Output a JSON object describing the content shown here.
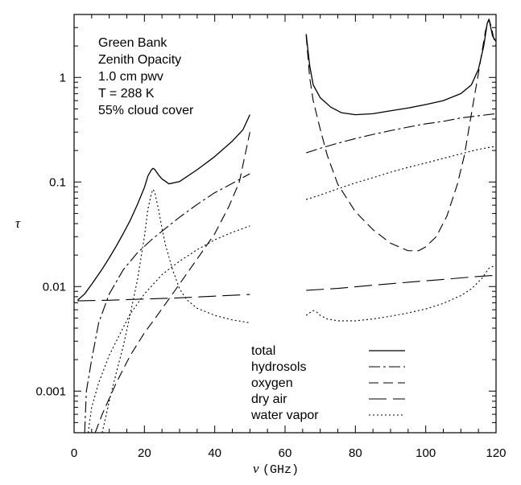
{
  "chart_data": {
    "type": "line",
    "annotation": [
      "Green Bank",
      "Zenith Opacity",
      "1.0 cm pwv",
      "T = 288 K",
      "55% cloud cover"
    ],
    "ylabel": "τ",
    "xlabel_symbol": "ν",
    "xlabel_unit": "(GHz)",
    "xlim": [
      0,
      120
    ],
    "ylim": [
      0.0004,
      4
    ],
    "yscale": "log",
    "x_ticks": [
      0,
      20,
      40,
      60,
      80,
      100,
      120
    ],
    "x_tick_labels": [
      "0",
      "20",
      "40",
      "60",
      "80",
      "100",
      "120"
    ],
    "y_ticks": [
      0.001,
      0.01,
      0.1,
      1
    ],
    "y_tick_labels": [
      "0.001",
      "0.01",
      "0.1",
      "1"
    ],
    "legend_position": "bottom-right",
    "series": [
      {
        "name": "total",
        "dash": "none",
        "segments": [
          [
            [
              1,
              0.0074
            ],
            [
              3,
              0.0085
            ],
            [
              5,
              0.0105
            ],
            [
              8,
              0.0147
            ],
            [
              10,
              0.0188
            ],
            [
              12,
              0.0244
            ],
            [
              14,
              0.0322
            ],
            [
              16,
              0.0432
            ],
            [
              18,
              0.0608
            ],
            [
              20,
              0.0885
            ],
            [
              21,
              0.114
            ],
            [
              22,
              0.131
            ],
            [
              22.5,
              0.135
            ],
            [
              23,
              0.131
            ],
            [
              24,
              0.117
            ],
            [
              25,
              0.107
            ],
            [
              27,
              0.096
            ],
            [
              30,
              0.101
            ],
            [
              35,
              0.131
            ],
            [
              40,
              0.175
            ],
            [
              45,
              0.246
            ],
            [
              48,
              0.315
            ],
            [
              50,
              0.44
            ]
          ],
          [
            [
              66,
              2.6
            ],
            [
              67,
              1.3
            ],
            [
              68,
              0.85
            ],
            [
              70,
              0.64
            ],
            [
              73,
              0.52
            ],
            [
              76,
              0.46
            ],
            [
              80,
              0.44
            ],
            [
              85,
              0.45
            ],
            [
              90,
              0.48
            ],
            [
              95,
              0.51
            ],
            [
              100,
              0.55
            ],
            [
              105,
              0.6
            ],
            [
              110,
              0.7
            ],
            [
              113,
              0.85
            ],
            [
              115,
              1.2
            ],
            [
              116.5,
              2.0
            ],
            [
              117.5,
              3.3
            ],
            [
              118,
              3.6
            ],
            [
              118.5,
              3.0
            ],
            [
              119,
              2.5
            ],
            [
              120,
              2.2
            ]
          ]
        ]
      },
      {
        "name": "hydrosols",
        "dash": "14 4 3 4",
        "segments": [
          [
            [
              3,
              0.0004
            ],
            [
              3.5,
              0.001
            ],
            [
              5,
              0.002
            ],
            [
              7,
              0.0045
            ],
            [
              10,
              0.0085
            ],
            [
              14,
              0.0145
            ],
            [
              18,
              0.021
            ],
            [
              22,
              0.028
            ],
            [
              26,
              0.036
            ],
            [
              30,
              0.046
            ],
            [
              35,
              0.061
            ],
            [
              40,
              0.079
            ],
            [
              45,
              0.097
            ],
            [
              50,
              0.12
            ]
          ],
          [
            [
              66,
              0.19
            ],
            [
              70,
              0.21
            ],
            [
              75,
              0.235
            ],
            [
              80,
              0.26
            ],
            [
              85,
              0.285
            ],
            [
              90,
              0.31
            ],
            [
              95,
              0.335
            ],
            [
              100,
              0.36
            ],
            [
              105,
              0.38
            ],
            [
              110,
              0.41
            ],
            [
              115,
              0.43
            ],
            [
              120,
              0.45
            ]
          ]
        ]
      },
      {
        "name": "oxygen",
        "dash": "12 6",
        "segments": [
          [
            [
              6,
              0.0004
            ],
            [
              8,
              0.0006
            ],
            [
              12,
              0.0012
            ],
            [
              16,
              0.0022
            ],
            [
              20,
              0.0036
            ],
            [
              24,
              0.0055
            ],
            [
              28,
              0.0085
            ],
            [
              32,
              0.0132
            ],
            [
              36,
              0.0205
            ],
            [
              40,
              0.032
            ],
            [
              44,
              0.058
            ],
            [
              47,
              0.1
            ],
            [
              50,
              0.3
            ]
          ],
          [
            [
              66,
              2.5
            ],
            [
              67,
              1.0
            ],
            [
              68,
              0.6
            ],
            [
              70,
              0.32
            ],
            [
              72,
              0.18
            ],
            [
              75,
              0.095
            ],
            [
              80,
              0.052
            ],
            [
              85,
              0.035
            ],
            [
              90,
              0.026
            ],
            [
              95,
              0.022
            ],
            [
              98,
              0.022
            ],
            [
              100,
              0.024
            ],
            [
              103,
              0.03
            ],
            [
              106,
              0.047
            ],
            [
              109,
              0.095
            ],
            [
              111,
              0.18
            ],
            [
              113,
              0.45
            ],
            [
              115,
              1.1
            ],
            [
              117,
              2.8
            ],
            [
              118,
              3.6
            ],
            [
              118.7,
              3.0
            ],
            [
              119.3,
              2.4
            ],
            [
              120,
              2.0
            ]
          ]
        ]
      },
      {
        "name": "dry air",
        "dash": "22 8",
        "segments": [
          [
            [
              1,
              0.0073
            ],
            [
              10,
              0.0074
            ],
            [
              20,
              0.0076
            ],
            [
              30,
              0.0078
            ],
            [
              40,
              0.0081
            ],
            [
              50,
              0.0084
            ]
          ],
          [
            [
              66,
              0.0092
            ],
            [
              75,
              0.0096
            ],
            [
              85,
              0.0103
            ],
            [
              95,
              0.011
            ],
            [
              105,
              0.0117
            ],
            [
              115,
              0.0125
            ],
            [
              120,
              0.0128
            ]
          ]
        ]
      },
      {
        "name": "water vapor",
        "dash": "2 3",
        "segments": [
          [
            [
              8,
              0.0004
            ],
            [
              10,
              0.0008
            ],
            [
              12,
              0.0015
            ],
            [
              14,
              0.0027
            ],
            [
              16,
              0.0055
            ],
            [
              18,
              0.0115
            ],
            [
              20,
              0.03
            ],
            [
              21,
              0.055
            ],
            [
              22,
              0.078
            ],
            [
              22.5,
              0.085
            ],
            [
              23,
              0.078
            ],
            [
              24,
              0.055
            ],
            [
              25,
              0.036
            ],
            [
              26,
              0.025
            ],
            [
              28,
              0.0145
            ],
            [
              30,
              0.0095
            ],
            [
              32,
              0.0075
            ],
            [
              35,
              0.0062
            ],
            [
              40,
              0.0053
            ],
            [
              45,
              0.0048
            ],
            [
              50,
              0.0045
            ]
          ],
          [
            [
              66,
              0.0053
            ],
            [
              67,
              0.0056
            ],
            [
              68,
              0.0059
            ],
            [
              69,
              0.0057
            ],
            [
              70,
              0.0053
            ],
            [
              72,
              0.0049
            ],
            [
              75,
              0.0047
            ],
            [
              80,
              0.0047
            ],
            [
              85,
              0.0049
            ],
            [
              90,
              0.0052
            ],
            [
              95,
              0.0056
            ],
            [
              100,
              0.0061
            ],
            [
              105,
              0.0069
            ],
            [
              110,
              0.0082
            ],
            [
              113,
              0.0095
            ],
            [
              116,
              0.012
            ],
            [
              118,
              0.015
            ],
            [
              120,
              0.016
            ]
          ]
        ]
      },
      {
        "name": "",
        "dash": "2 3",
        "segments": [
          [
            [
              4,
              0.0004
            ],
            [
              5,
              0.0007
            ],
            [
              7,
              0.0012
            ],
            [
              10,
              0.0022
            ],
            [
              13,
              0.0035
            ],
            [
              16,
              0.0055
            ],
            [
              20,
              0.0085
            ],
            [
              25,
              0.013
            ],
            [
              30,
              0.0175
            ],
            [
              35,
              0.0225
            ],
            [
              40,
              0.028
            ],
            [
              45,
              0.033
            ],
            [
              50,
              0.038
            ]
          ],
          [
            [
              66,
              0.068
            ],
            [
              70,
              0.075
            ],
            [
              75,
              0.086
            ],
            [
              80,
              0.098
            ],
            [
              85,
              0.11
            ],
            [
              90,
              0.124
            ],
            [
              95,
              0.138
            ],
            [
              100,
              0.152
            ],
            [
              105,
              0.168
            ],
            [
              110,
              0.186
            ],
            [
              115,
              0.205
            ],
            [
              120,
              0.22
            ]
          ]
        ]
      }
    ]
  }
}
